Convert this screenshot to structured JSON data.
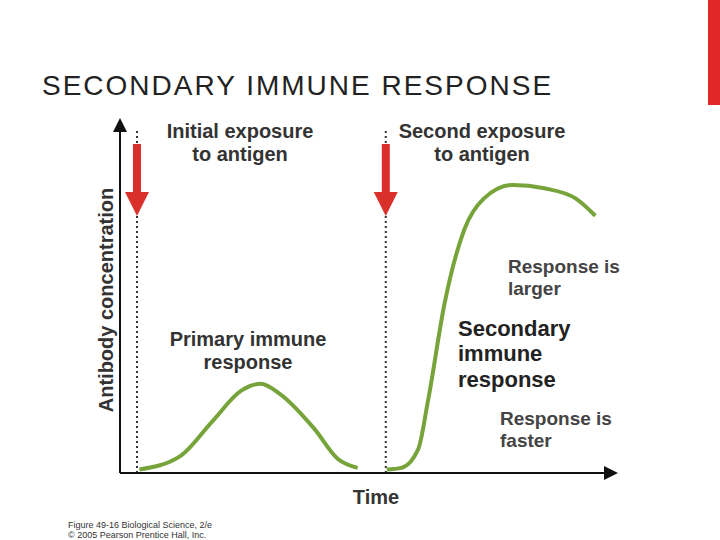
{
  "chart_data": {
    "type": "line",
    "title": "SECONDARY IMMUNE RESPONSE",
    "x_label": "Time",
    "y_label": "Antibody concentration",
    "x": [
      4,
      12.5,
      19,
      25,
      29,
      33,
      40,
      45,
      49,
      52,
      55,
      58,
      61.5,
      63.5,
      67,
      71,
      75,
      81,
      87.5,
      94,
      98
    ],
    "values": [
      1,
      5,
      15,
      24,
      26,
      23,
      13,
      4,
      1.5,
      null,
      1,
      1.5,
      7,
      21,
      50,
      71,
      80,
      84,
      83,
      80,
      75
    ],
    "color": "#77a43a",
    "xlim": [
      0,
      100
    ],
    "ylim": [
      0,
      100
    ],
    "tick_labels": false,
    "grid": false,
    "exposures": [
      {
        "x": 3.5,
        "label": "Initial exposure\nto antigen"
      },
      {
        "x": 54.8,
        "label": "Second exposure\nto antigen"
      }
    ],
    "annotations": [
      "Primary immune\nresponse",
      "Secondary\nimmune\nresponse",
      "Response is\nlarger",
      "Response is\nfaster"
    ],
    "source": "Figure 49-16 Biological Science, 2/e\n© 2005 Pearson Prentice Hall, Inc."
  }
}
